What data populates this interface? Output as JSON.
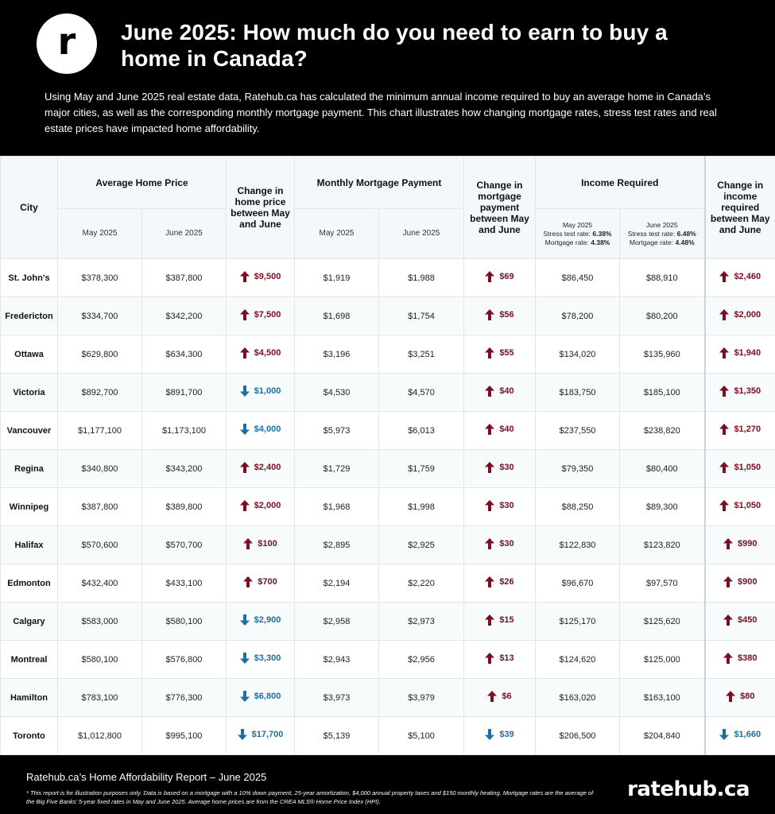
{
  "header": {
    "logo_letter": "r",
    "title": "June 2025: How much do you need to earn to buy a home in Canada?",
    "intro": "Using May and June 2025 real estate data, Ratehub.ca has calculated the minimum annual income required to buy an average home in Canada’s major cities, as well as the corresponding monthly mortgage payment. This chart illustrates how changing mortgage rates, stress test rates and real estate prices have impacted home affordability."
  },
  "table_headers": {
    "city": "City",
    "avg_price": "Average Home Price",
    "price_change": "Change in home price between May and June",
    "payment": "Monthly Mortgage Payment",
    "payment_change": "Change in mortgage payment between May and June",
    "income": "Income Required",
    "income_change": "Change in income required between May and June",
    "may": "May 2025",
    "june": "June 2025",
    "may_label": "May 2025",
    "june_label": "June 2025",
    "may_stress_label": "Stress test rate:",
    "may_stress": "6.38%",
    "may_mortgage_label": "Mortgage rate:",
    "may_mortgage": "4.38%",
    "june_stress_label": "Stress test rate:",
    "june_stress": "6.48%",
    "june_mortgage_label": "Mortgage rate:",
    "june_mortgage": "4.48%"
  },
  "colors": {
    "up": "#7a0f1f",
    "down": "#1f6f9e",
    "header_bg": "#f3f9fb"
  },
  "chart_data": {
    "type": "table",
    "columns": [
      "City",
      "Average Home Price May 2025",
      "Average Home Price June 2025",
      "Change in home price",
      "Monthly Mortgage Payment May 2025",
      "Monthly Mortgage Payment June 2025",
      "Change in mortgage payment",
      "Income Required May 2025",
      "Income Required June 2025",
      "Change in income required"
    ],
    "rows": [
      {
        "city": "St. John’s",
        "price_may": "$378,300",
        "price_june": "$387,800",
        "price_change": "$9,500",
        "price_dir": "up",
        "pay_may": "$1,919",
        "pay_june": "$1,988",
        "pay_change": "$69",
        "pay_dir": "up",
        "inc_may": "$86,450",
        "inc_june": "$88,910",
        "inc_change": "$2,460",
        "inc_dir": "up"
      },
      {
        "city": "Fredericton",
        "price_may": "$334,700",
        "price_june": "$342,200",
        "price_change": "$7,500",
        "price_dir": "up",
        "pay_may": "$1,698",
        "pay_june": "$1,754",
        "pay_change": "$56",
        "pay_dir": "up",
        "inc_may": "$78,200",
        "inc_june": "$80,200",
        "inc_change": "$2,000",
        "inc_dir": "up"
      },
      {
        "city": "Ottawa",
        "price_may": "$629,800",
        "price_june": "$634,300",
        "price_change": "$4,500",
        "price_dir": "up",
        "pay_may": "$3,196",
        "pay_june": "$3,251",
        "pay_change": "$55",
        "pay_dir": "up",
        "inc_may": "$134,020",
        "inc_june": "$135,960",
        "inc_change": "$1,940",
        "inc_dir": "up"
      },
      {
        "city": "Victoria",
        "price_may": "$892,700",
        "price_june": "$891,700",
        "price_change": "$1,000",
        "price_dir": "down",
        "pay_may": "$4,530",
        "pay_june": "$4,570",
        "pay_change": "$40",
        "pay_dir": "up",
        "inc_may": "$183,750",
        "inc_june": "$185,100",
        "inc_change": "$1,350",
        "inc_dir": "up"
      },
      {
        "city": "Vancouver",
        "price_may": "$1,177,100",
        "price_june": "$1,173,100",
        "price_change": "$4,000",
        "price_dir": "down",
        "pay_may": "$5,973",
        "pay_june": "$6,013",
        "pay_change": "$40",
        "pay_dir": "up",
        "inc_may": "$237,550",
        "inc_june": "$238,820",
        "inc_change": "$1,270",
        "inc_dir": "up"
      },
      {
        "city": "Regina",
        "price_may": "$340,800",
        "price_june": "$343,200",
        "price_change": "$2,400",
        "price_dir": "up",
        "pay_may": "$1,729",
        "pay_june": "$1,759",
        "pay_change": "$30",
        "pay_dir": "up",
        "inc_may": "$79,350",
        "inc_june": "$80,400",
        "inc_change": "$1,050",
        "inc_dir": "up"
      },
      {
        "city": "Winnipeg",
        "price_may": "$387,800",
        "price_june": "$389,800",
        "price_change": "$2,000",
        "price_dir": "up",
        "pay_may": "$1,968",
        "pay_june": "$1,998",
        "pay_change": "$30",
        "pay_dir": "up",
        "inc_may": "$88,250",
        "inc_june": "$89,300",
        "inc_change": "$1,050",
        "inc_dir": "up"
      },
      {
        "city": "Halifax",
        "price_may": "$570,600",
        "price_june": "$570,700",
        "price_change": "$100",
        "price_dir": "up",
        "pay_may": "$2,895",
        "pay_june": "$2,925",
        "pay_change": "$30",
        "pay_dir": "up",
        "inc_may": "$122,830",
        "inc_june": "$123,820",
        "inc_change": "$990",
        "inc_dir": "up"
      },
      {
        "city": "Edmonton",
        "price_may": "$432,400",
        "price_june": "$433,100",
        "price_change": "$700",
        "price_dir": "up",
        "pay_may": "$2,194",
        "pay_june": "$2,220",
        "pay_change": "$26",
        "pay_dir": "up",
        "inc_may": "$96,670",
        "inc_june": "$97,570",
        "inc_change": "$900",
        "inc_dir": "up"
      },
      {
        "city": "Calgary",
        "price_may": "$583,000",
        "price_june": "$580,100",
        "price_change": "$2,900",
        "price_dir": "down",
        "pay_may": "$2,958",
        "pay_june": "$2,973",
        "pay_change": "$15",
        "pay_dir": "up",
        "inc_may": "$125,170",
        "inc_june": "$125,620",
        "inc_change": "$450",
        "inc_dir": "up"
      },
      {
        "city": "Montreal",
        "price_may": "$580,100",
        "price_june": "$576,800",
        "price_change": "$3,300",
        "price_dir": "down",
        "pay_may": "$2,943",
        "pay_june": "$2,956",
        "pay_change": "$13",
        "pay_dir": "up",
        "inc_may": "$124,620",
        "inc_june": "$125,000",
        "inc_change": "$380",
        "inc_dir": "up"
      },
      {
        "city": "Hamilton",
        "price_may": "$783,100",
        "price_june": "$776,300",
        "price_change": "$6,800",
        "price_dir": "down",
        "pay_may": "$3,973",
        "pay_june": "$3,979",
        "pay_change": "$6",
        "pay_dir": "up",
        "inc_may": "$163,020",
        "inc_june": "$163,100",
        "inc_change": "$80",
        "inc_dir": "up"
      },
      {
        "city": "Toronto",
        "price_may": "$1,012,800",
        "price_june": "$995,100",
        "price_change": "$17,700",
        "price_dir": "down",
        "pay_may": "$5,139",
        "pay_june": "$5,100",
        "pay_change": "$39",
        "pay_dir": "down",
        "inc_may": "$206,500",
        "inc_june": "$204,840",
        "inc_change": "$1,660",
        "inc_dir": "down"
      }
    ]
  },
  "footer": {
    "title": "Ratehub.ca’s Home Affordability Report – June 2025",
    "note": "* This report is for illustration purposes only. Data is based on a mortgage with a 10% down payment, 25-year amortization, $4,000 annual property taxes and $150 monthly heating. Mortgage rates are the average of the Big Five Banks’ 5-year fixed rates in May and June 2025. Average home prices are from the CREA MLS® Home Price Index (HPI).",
    "brand": "ratehub.ca"
  }
}
